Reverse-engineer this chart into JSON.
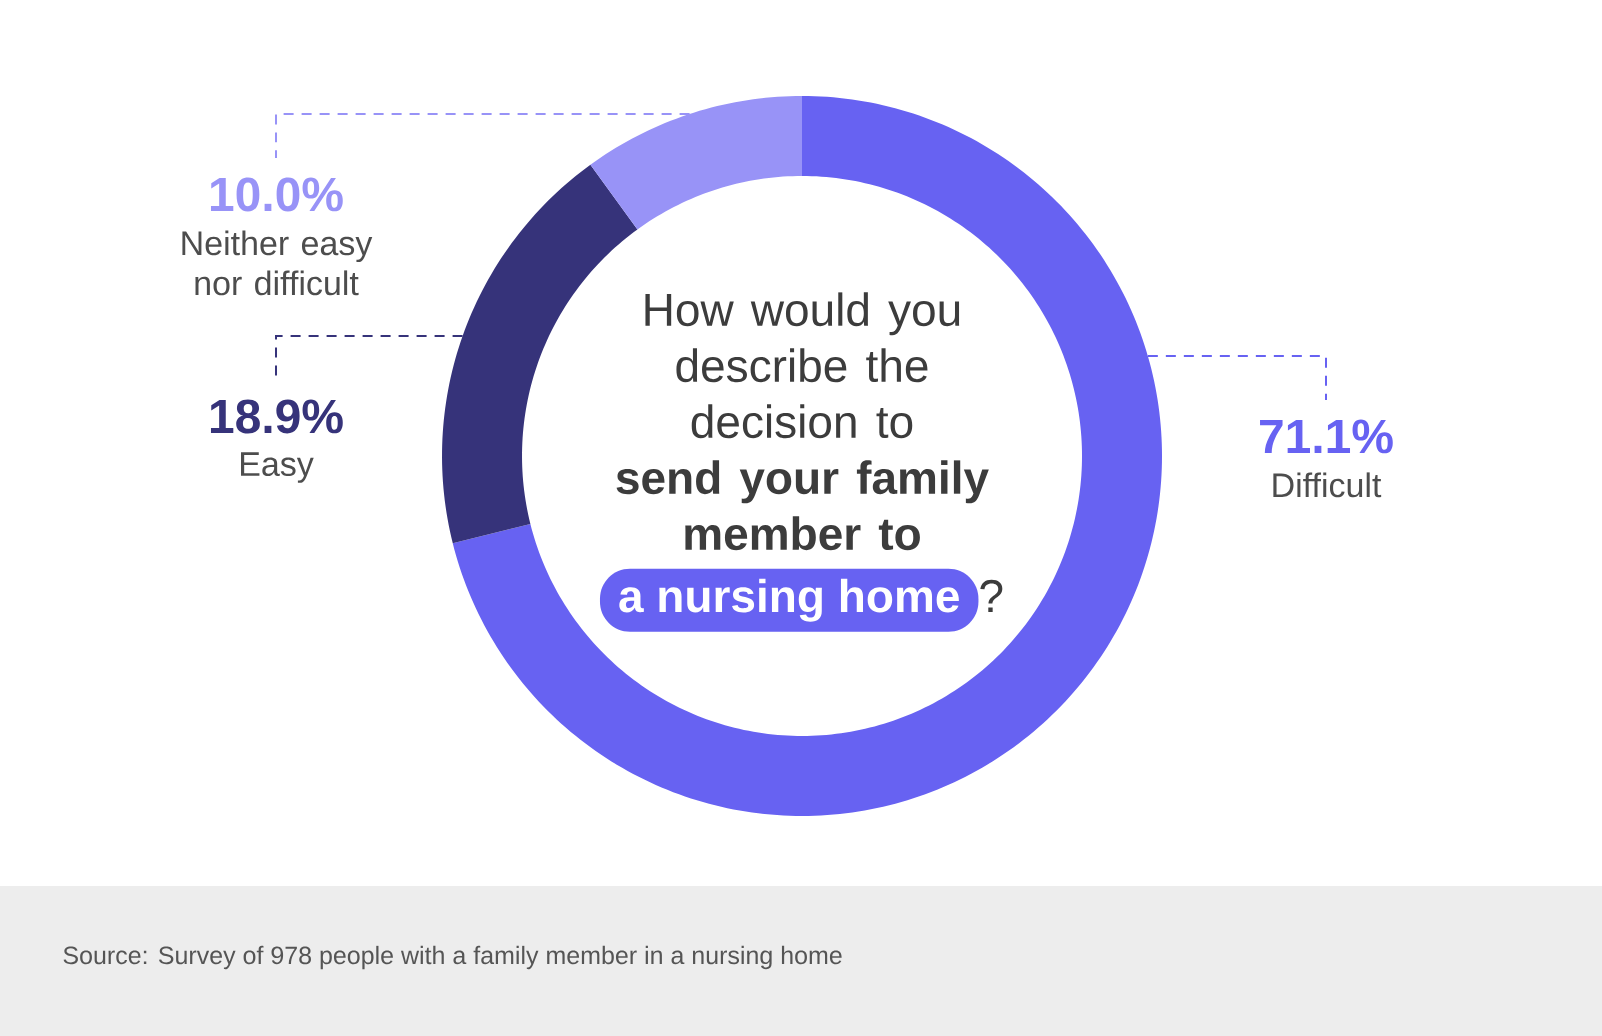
{
  "chart_data": {
    "type": "donut",
    "title": "How would you describe the decision to **send your family member to**",
    "subtitle": "**a nursing home**?",
    "categories": [
      "Difficult",
      "Easy",
      "Neither easy nor difficult"
    ],
    "values": [
      71.1,
      18.9,
      10.0
    ],
    "value_labels": [
      "71.1%",
      "18.9%",
      "10.0%"
    ],
    "colors": [
      "#6762f2",
      "#36337a",
      "#9893f7"
    ],
    "annotations": [
      "Source: Survey of 978 people with a family member in a nursing home"
    ]
  }
}
